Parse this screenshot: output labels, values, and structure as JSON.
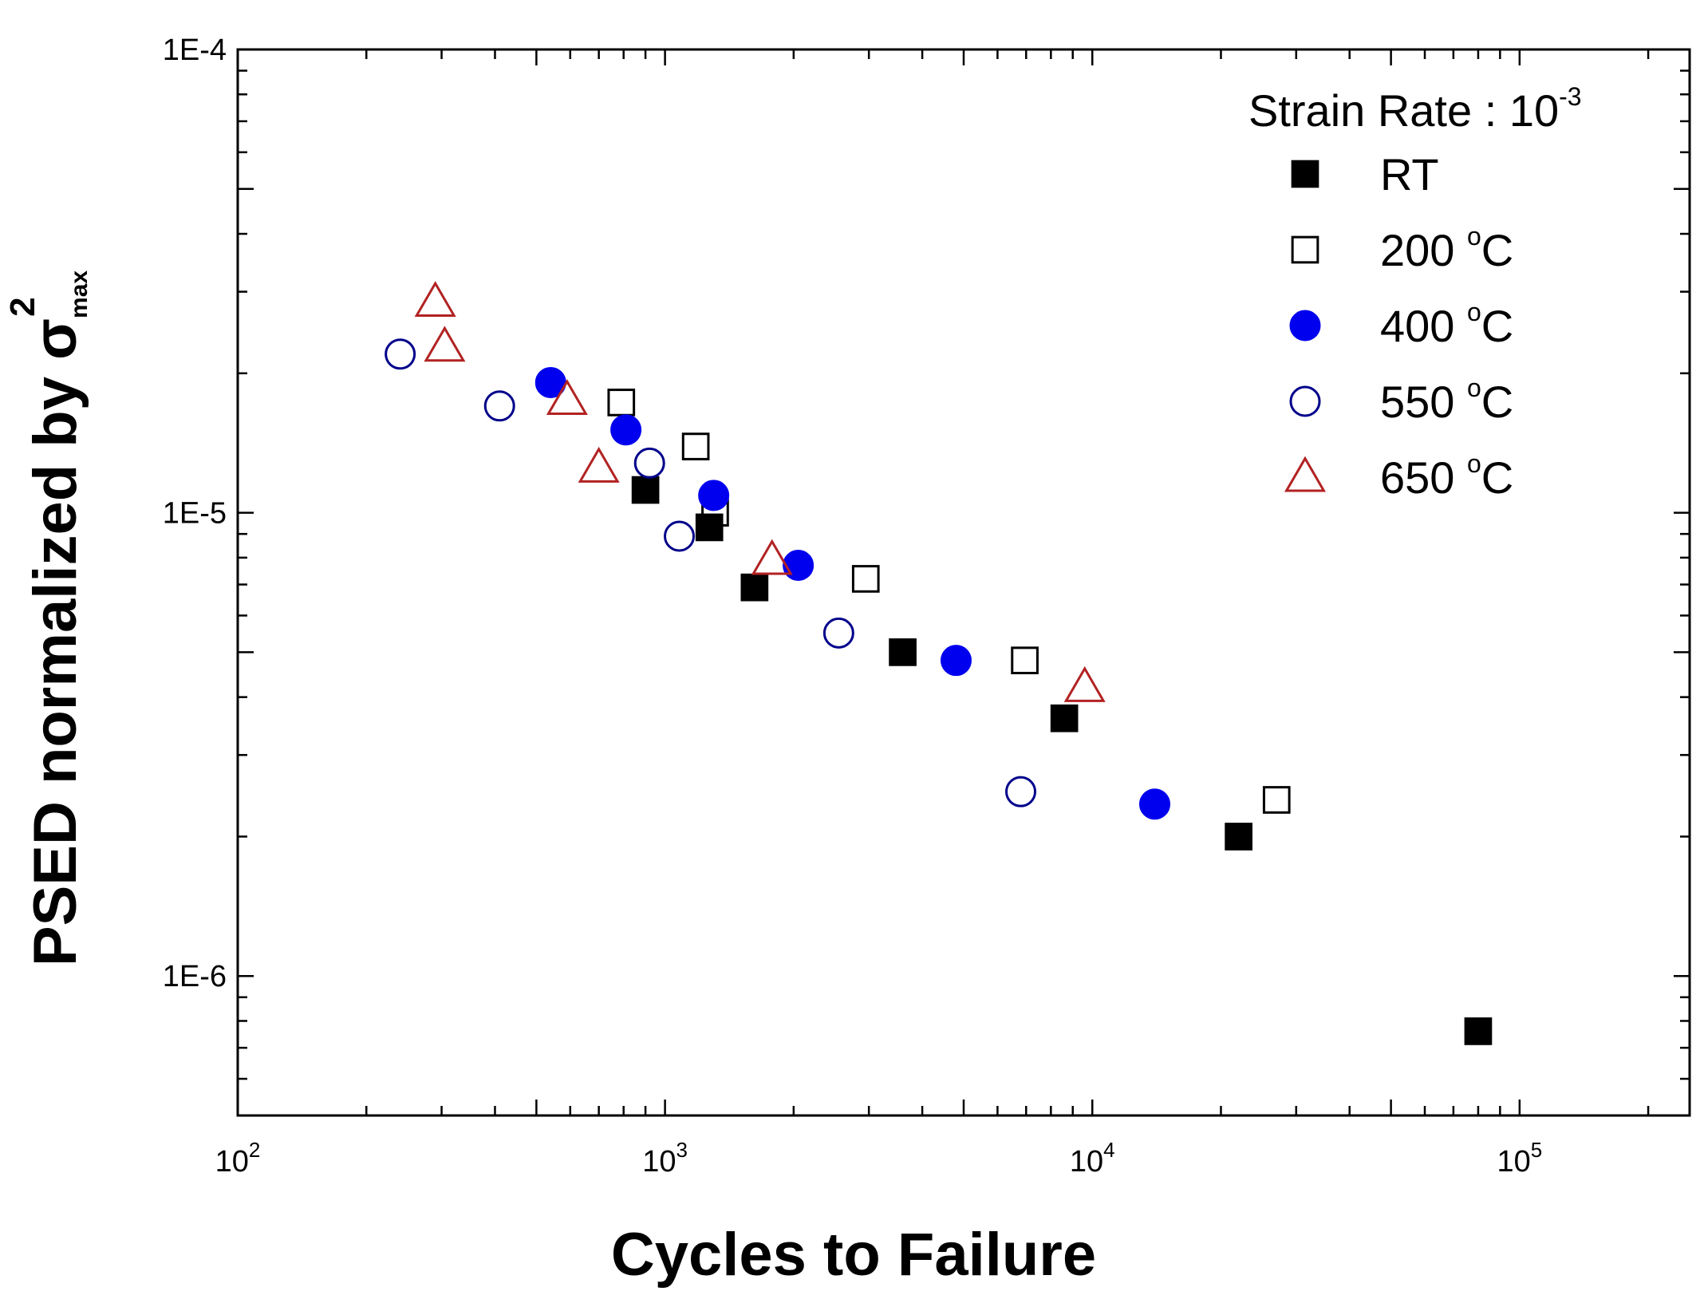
{
  "chart_data": {
    "type": "scatter",
    "xscale": "log",
    "yscale": "log",
    "xlim": [
      100,
      250000
    ],
    "ylim": [
      5e-07,
      0.0001
    ],
    "xlabel": "Cycles to Failure",
    "ylabel": {
      "main": "PSED normalized by ",
      "symbol": "σ",
      "sub": "max",
      "sup": "2"
    },
    "xticks": [
      {
        "value": 100,
        "base": "10",
        "exp": "2"
      },
      {
        "value": 1000,
        "base": "10",
        "exp": "3"
      },
      {
        "value": 10000,
        "base": "10",
        "exp": "4"
      },
      {
        "value": 100000,
        "base": "10",
        "exp": "5"
      }
    ],
    "yticks": [
      {
        "value": 0.0001,
        "label": "1E-4"
      },
      {
        "value": 1e-05,
        "label": "1E-5"
      },
      {
        "value": 1e-06,
        "label": "1E-6"
      }
    ],
    "legend": {
      "title": "Strain Rate : 10",
      "title_sup": "-3",
      "placement": "top-right"
    },
    "series": [
      {
        "name": "RT",
        "label_main": "RT",
        "label_sup": "",
        "label_unit": "",
        "marker": "square",
        "filled": true,
        "color": "#000000",
        "points": [
          [
            900,
            1.12e-05
          ],
          [
            1270,
            9.3e-06
          ],
          [
            1620,
            6.9e-06
          ],
          [
            3600,
            5e-06
          ],
          [
            8600,
            3.6e-06
          ],
          [
            22000,
            2e-06
          ],
          [
            80000,
            7.6e-07
          ]
        ]
      },
      {
        "name": "200 °C",
        "label_main": "200 ",
        "label_sup": "o",
        "label_unit": "C",
        "marker": "square",
        "filled": false,
        "color": "#000000",
        "points": [
          [
            790,
            1.73e-05
          ],
          [
            1180,
            1.39e-05
          ],
          [
            1310,
            1e-05
          ],
          [
            2950,
            7.2e-06
          ],
          [
            6950,
            4.8e-06
          ],
          [
            27000,
            2.4e-06
          ]
        ]
      },
      {
        "name": "400 °C",
        "label_main": "400 ",
        "label_sup": "o",
        "label_unit": "C",
        "marker": "circle",
        "filled": true,
        "color": "#0000ee",
        "points": [
          [
            540,
            1.91e-05
          ],
          [
            810,
            1.51e-05
          ],
          [
            1300,
            1.09e-05
          ],
          [
            2050,
            7.7e-06
          ],
          [
            4800,
            4.8e-06
          ],
          [
            14000,
            2.35e-06
          ]
        ]
      },
      {
        "name": "550 °C",
        "label_main": "550 ",
        "label_sup": "o",
        "label_unit": "C",
        "marker": "circle",
        "filled": false,
        "color": "#00008b",
        "points": [
          [
            240,
            2.2e-05
          ],
          [
            410,
            1.7e-05
          ],
          [
            920,
            1.28e-05
          ],
          [
            1080,
            8.9e-06
          ],
          [
            2550,
            5.5e-06
          ],
          [
            6800,
            2.5e-06
          ]
        ]
      },
      {
        "name": "650 °C",
        "label_main": "650 ",
        "label_sup": "o",
        "label_unit": "C",
        "marker": "triangle",
        "filled": false,
        "color": "#b22222",
        "points": [
          [
            290,
            2.85e-05
          ],
          [
            305,
            2.28e-05
          ],
          [
            590,
            1.75e-05
          ],
          [
            700,
            1.25e-05
          ],
          [
            1780,
            7.9e-06
          ],
          [
            9600,
            4.2e-06
          ]
        ]
      }
    ]
  }
}
